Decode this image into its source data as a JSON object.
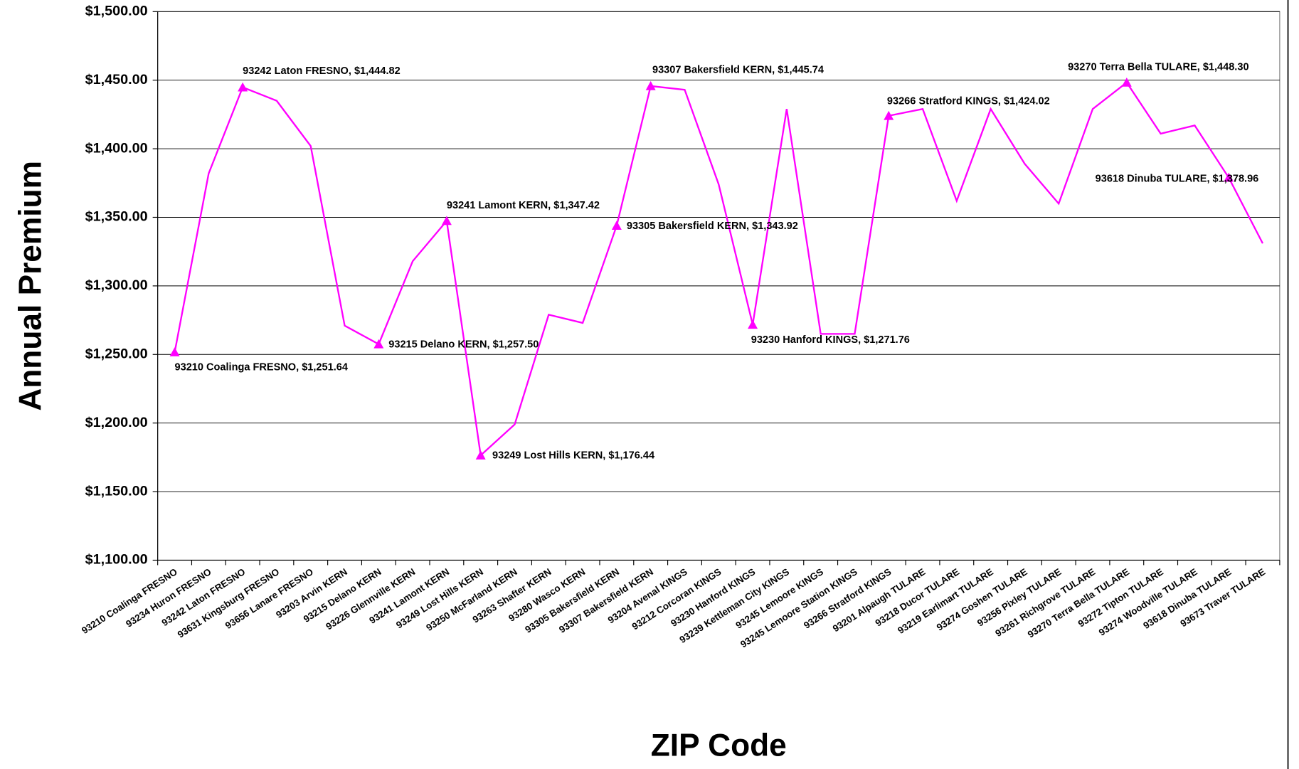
{
  "chart_data": {
    "type": "line",
    "ylabel": "Annual Premium",
    "xlabel": "ZIP Code",
    "categories": [
      "93210 Coalinga FRESNO",
      "93234 Huron FRESNO",
      "93242 Laton FRESNO",
      "93631 Kingsburg FRESNO",
      "93656 Lanare FRESNO",
      "93203 Arvin KERN",
      "93215 Delano KERN",
      "93226 Glennville KERN",
      "93241 Lamont KERN",
      "93249 Lost Hills KERN",
      "93250 McFarland KERN",
      "93263 Shafter KERN",
      "93280 Wasco KERN",
      "93305 Bakersfield KERN",
      "93307 Bakersfield KERN",
      "93204 Avenal KINGS",
      "93212 Corcoran KINGS",
      "93230 Hanford KINGS",
      "93239 Kettleman City KINGS",
      "93245 Lemoore KINGS",
      "93245 Lemoore Station KINGS",
      "93266 Stratford KINGS",
      "93201 Alpaugh TULARE",
      "93218 Ducor TULARE",
      "93219 Earlimart TULARE",
      "93274 Goshen TULARE",
      "93256 Pixley TULARE",
      "93261 Richgrove TULARE",
      "93270 Terra Bella TULARE",
      "93272 Tipton TULARE",
      "93274 Woodville TULARE",
      "93618 Dinuba TULARE",
      "93673 Traver TULARE"
    ],
    "series": [
      {
        "name": "Annual Premium",
        "color": "#ff00ff",
        "values": [
          1251.64,
          1382,
          1444.82,
          1435,
          1402,
          1271,
          1257.5,
          1318,
          1347.42,
          1176.44,
          1199,
          1279,
          1273,
          1343.92,
          1445.74,
          1443,
          1374,
          1271.76,
          1429,
          1265,
          1265,
          1424.02,
          1429,
          1362,
          1429,
          1389,
          1360,
          1429,
          1448.3,
          1411,
          1417,
          1378.96,
          1331
        ],
        "value_labels": [
          "93210 Coalinga FRESNO, $1,251.64",
          null,
          "93242 Laton FRESNO, $1,444.82",
          null,
          null,
          null,
          "93215 Delano KERN, $1,257.50",
          null,
          "93241 Lamont KERN, $1,347.42",
          "93249 Lost Hills KERN, $1,176.44",
          null,
          null,
          null,
          "93305 Bakersfield KERN, $1,343.92",
          "93307 Bakersfield KERN, $1,445.74",
          null,
          null,
          "93230 Hanford KINGS, $1,271.76",
          null,
          null,
          null,
          "93266 Stratford KINGS, $1,424.02",
          null,
          null,
          null,
          null,
          null,
          null,
          "93270 Terra Bella TULARE, $1,448.30",
          null,
          null,
          "93618 Dinuba TULARE, $1,378.96",
          null
        ]
      }
    ],
    "ylim": [
      1100,
      1500
    ],
    "yticks": [
      {
        "value": 1100,
        "label": "$1,100.00"
      },
      {
        "value": 1150,
        "label": "$1,150.00"
      },
      {
        "value": 1200,
        "label": "$1,200.00"
      },
      {
        "value": 1250,
        "label": "$1,250.00"
      },
      {
        "value": 1300,
        "label": "$1,300.00"
      },
      {
        "value": 1350,
        "label": "$1,350.00"
      },
      {
        "value": 1400,
        "label": "$1,400.00"
      },
      {
        "value": 1450,
        "label": "$1,450.00"
      },
      {
        "value": 1500,
        "label": "$1,500.00"
      }
    ],
    "grid": true
  }
}
